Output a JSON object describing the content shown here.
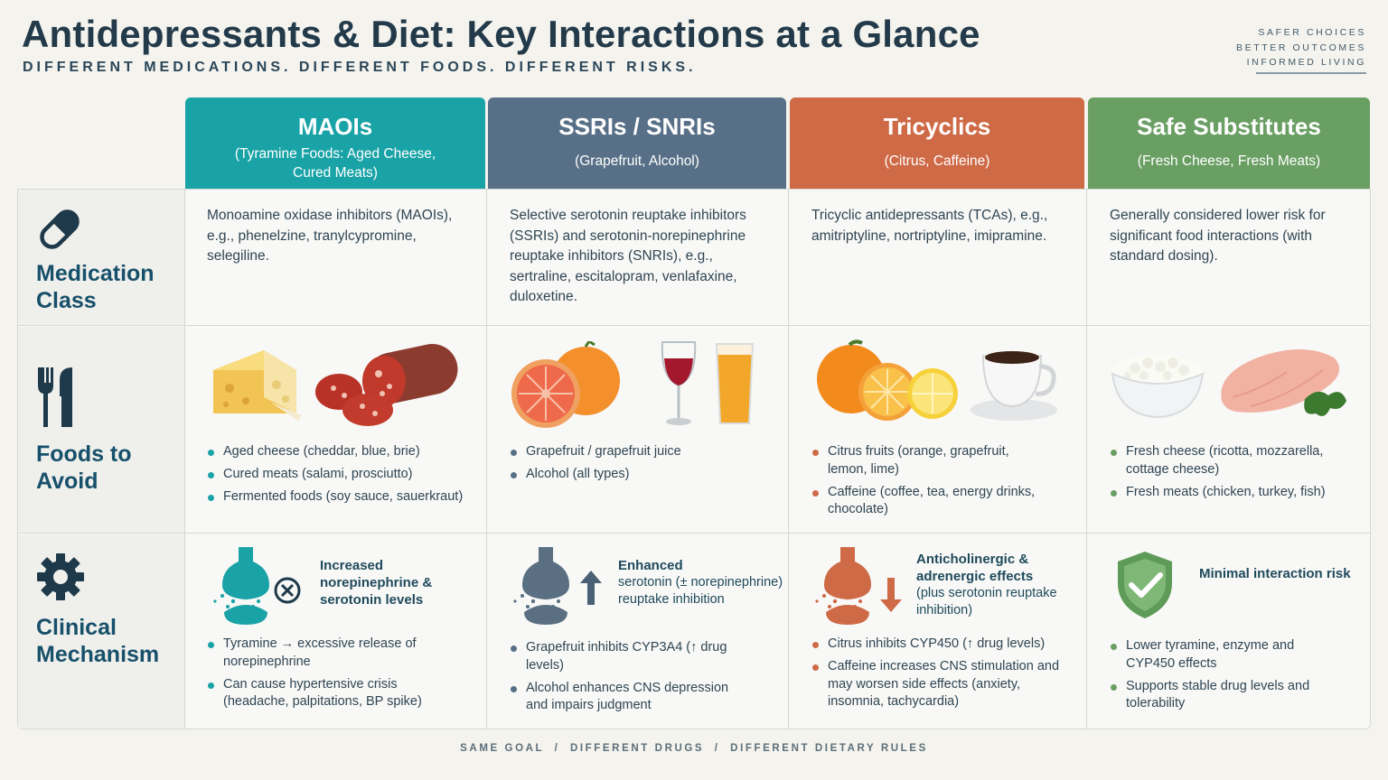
{
  "header": {
    "title": "Antidepressants & Diet: Key Interactions at a Glance",
    "subtitle": "DIFFERENT MEDICATIONS. DIFFERENT FOODS. DIFFERENT RISKS.",
    "tagline": [
      "SAFER CHOICES",
      "BETTER OUTCOMES",
      "INFORMED LIVING"
    ]
  },
  "colors": {
    "maoi": "#1aa3a6",
    "ssri": "#587087",
    "tca": "#cf6a47",
    "safe": "#6a9f63",
    "label": "#17506a"
  },
  "row_labels": {
    "medication_class": [
      "Medication",
      "Class"
    ],
    "foods_to_avoid": [
      "Foods to",
      "Avoid"
    ],
    "clinical_mechanism": [
      "Clinical",
      "Mechanism"
    ]
  },
  "columns": [
    {
      "title": "MAOIs",
      "subtitle": "(Tyramine Foods: Aged Cheese, Cured Meats)",
      "description": "Monoamine oxidase inhibitors (MAOIs), e.g., phenelzine, tranylcypromine, selegiline.",
      "foods": [
        "Aged cheese (cheddar, blue, brie)",
        "Cured meats (salami, prosciutto)",
        "Fermented foods (soy sauce, sauerkraut)"
      ],
      "mechanism_title": "Increased norepinephrine & serotonin levels",
      "mechanism": [
        "Tyramine → excessive release of norepinephrine",
        "Can cause hypertensive crisis (headache, palpitations, BP spike)"
      ]
    },
    {
      "title": "SSRIs / SNRIs",
      "subtitle": "(Grapefruit, Alcohol)",
      "description": "Selective serotonin reuptake inhibitors (SSRIs) and serotonin-norepinephrine reuptake inhibitors (SNRIs), e.g., sertraline, escitalopram, venlafaxine, duloxetine.",
      "foods": [
        "Grapefruit / grapefruit juice",
        "Alcohol (all types)"
      ],
      "mechanism_title": "Enhanced",
      "mechanism_subtitle": "serotonin (± norepinephrine) reuptake inhibition",
      "mechanism": [
        "Grapefruit inhibits CYP3A4 (↑ drug levels)",
        "Alcohol enhances CNS depression and impairs judgment"
      ]
    },
    {
      "title": "Tricyclics",
      "subtitle": "(Citrus, Caffeine)",
      "description": "Tricyclic antidepressants (TCAs), e.g., amitriptyline, nortriptyline, imipramine.",
      "foods": [
        "Citrus fruits (orange, grapefruit, lemon, lime)",
        "Caffeine (coffee, tea, energy drinks, chocolate)"
      ],
      "mechanism_title": "Anticholinergic & adrenergic effects",
      "mechanism_subtitle": "(plus serotonin reuptake inhibition)",
      "mechanism": [
        "Citrus inhibits CYP450 (↑ drug levels)",
        "Caffeine increases CNS stimulation and may worsen side effects (anxiety, insomnia, tachycardia)"
      ]
    },
    {
      "title": "Safe Substitutes",
      "subtitle": "(Fresh Cheese, Fresh Meats)",
      "description": "Generally considered lower risk for significant food interactions (with standard dosing).",
      "foods": [
        "Fresh cheese (ricotta, mozzarella, cottage cheese)",
        "Fresh meats (chicken, turkey, fish)"
      ],
      "mechanism_title": "Minimal interaction risk",
      "mechanism": [
        "Lower tyramine, enzyme and CYP450 effects",
        "Supports stable drug levels and tolerability"
      ]
    }
  ],
  "footer": "SAME GOAL  /  DIFFERENT DRUGS  /  DIFFERENT DIETARY RULES"
}
